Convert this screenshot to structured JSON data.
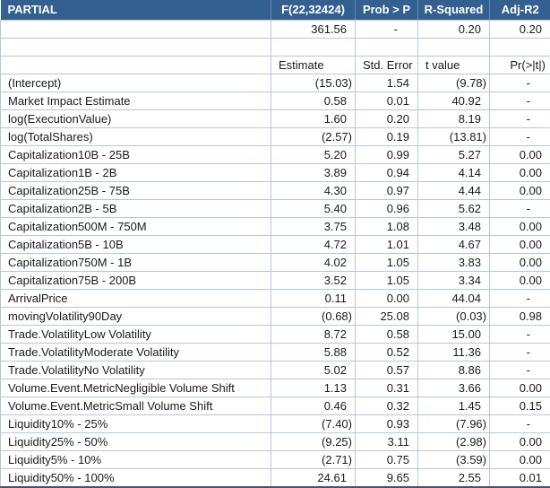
{
  "table": {
    "title": "PARTIAL",
    "summary_headers": [
      "F(22,32424)",
      "Prob > P",
      "R-Squared",
      "Adj-R2"
    ],
    "summary_values": {
      "f_value": "361.56",
      "prob_p": "-",
      "r_squared": "0.20",
      "adj_r2": "0.20"
    },
    "column_headers": [
      "Estimate",
      "Std. Error",
      "t value",
      "Pr(>|t|)"
    ],
    "rows": [
      {
        "label": "(Intercept)",
        "estimate": "(15.03)",
        "std_error": "1.54",
        "t_value": "(9.78)",
        "p_value": "-"
      },
      {
        "label": "Market Impact Estimate",
        "estimate": "0.58",
        "std_error": "0.01",
        "t_value": "40.92",
        "p_value": "-"
      },
      {
        "label": "log(ExecutionValue)",
        "estimate": "1.60",
        "std_error": "0.20",
        "t_value": "8.19",
        "p_value": "-"
      },
      {
        "label": "log(TotalShares)",
        "estimate": "(2.57)",
        "std_error": "0.19",
        "t_value": "(13.81)",
        "p_value": "-"
      },
      {
        "label": "Capitalization10B - 25B",
        "estimate": "5.20",
        "std_error": "0.99",
        "t_value": "5.27",
        "p_value": "0.00"
      },
      {
        "label": "Capitalization1B - 2B",
        "estimate": "3.89",
        "std_error": "0.94",
        "t_value": "4.14",
        "p_value": "0.00"
      },
      {
        "label": "Capitalization25B - 75B",
        "estimate": "4.30",
        "std_error": "0.97",
        "t_value": "4.44",
        "p_value": "0.00"
      },
      {
        "label": "Capitalization2B - 5B",
        "estimate": "5.40",
        "std_error": "0.96",
        "t_value": "5.62",
        "p_value": "-"
      },
      {
        "label": "Capitalization500M - 750M",
        "estimate": "3.75",
        "std_error": "1.08",
        "t_value": "3.48",
        "p_value": "0.00"
      },
      {
        "label": "Capitalization5B - 10B",
        "estimate": "4.72",
        "std_error": "1.01",
        "t_value": "4.67",
        "p_value": "0.00"
      },
      {
        "label": "Capitalization750M - 1B",
        "estimate": "4.02",
        "std_error": "1.05",
        "t_value": "3.83",
        "p_value": "0.00"
      },
      {
        "label": "Capitalization75B - 200B",
        "estimate": "3.52",
        "std_error": "1.05",
        "t_value": "3.34",
        "p_value": "0.00"
      },
      {
        "label": "ArrivalPrice",
        "estimate": "0.11",
        "std_error": "0.00",
        "t_value": "44.04",
        "p_value": "-"
      },
      {
        "label": "movingVolatility90Day",
        "estimate": "(0.68)",
        "std_error": "25.08",
        "t_value": "(0.03)",
        "p_value": "0.98"
      },
      {
        "label": "Trade.VolatilityLow Volatility",
        "estimate": "8.72",
        "std_error": "0.58",
        "t_value": "15.00",
        "p_value": "-"
      },
      {
        "label": "Trade.VolatilityModerate Volatility",
        "estimate": "5.88",
        "std_error": "0.52",
        "t_value": "11.36",
        "p_value": "-"
      },
      {
        "label": "Trade.VolatilityNo Volatility",
        "estimate": "5.02",
        "std_error": "0.57",
        "t_value": "8.86",
        "p_value": "-"
      },
      {
        "label": "Volume.Event.MetricNegligible Volume Shift",
        "estimate": "1.13",
        "std_error": "0.31",
        "t_value": "3.66",
        "p_value": "0.00"
      },
      {
        "label": "Volume.Event.MetricSmall Volume Shift",
        "estimate": "0.46",
        "std_error": "0.32",
        "t_value": "1.45",
        "p_value": "0.15"
      },
      {
        "label": "Liquidity10% - 25%",
        "estimate": "(7.40)",
        "std_error": "0.93",
        "t_value": "(7.96)",
        "p_value": "-"
      },
      {
        "label": "Liquidity25% - 50%",
        "estimate": "(9.25)",
        "std_error": "3.11",
        "t_value": "(2.98)",
        "p_value": "0.00"
      },
      {
        "label": "Liquidity5% - 10%",
        "estimate": "(2.71)",
        "std_error": "0.75",
        "t_value": "(3.59)",
        "p_value": "0.00"
      },
      {
        "label": "Liquidity50% - 100%",
        "estimate": "24.61",
        "std_error": "9.65",
        "t_value": "2.55",
        "p_value": "0.01"
      }
    ]
  },
  "colors": {
    "header_bg": "#34608F",
    "header_text": "#FFFFFF",
    "header_divider": "#6688B4",
    "border": "#B9C4DA",
    "bottom_border": "#44546A",
    "text": "#1A1A1A",
    "row_bg": "#FFFFFF"
  }
}
